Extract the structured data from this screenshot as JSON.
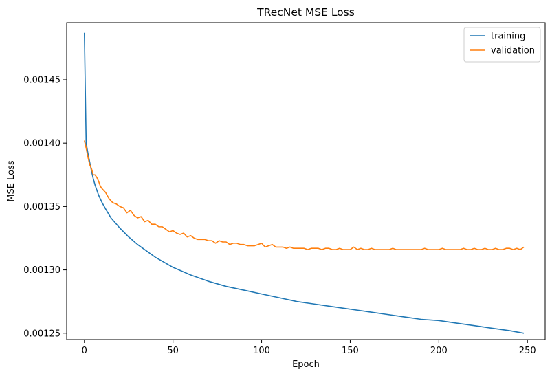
{
  "chart_data": {
    "type": "line",
    "title": "TRecNet MSE Loss",
    "xlabel": "Epoch",
    "ylabel": "MSE Loss",
    "xlim": [
      -10,
      260
    ],
    "ylim": [
      0.001245,
      0.001495
    ],
    "xticks": [
      0,
      50,
      100,
      150,
      200,
      250
    ],
    "yticks": [
      0.00125,
      0.0013,
      0.00135,
      0.0014,
      0.00145
    ],
    "ytick_labels": [
      "0.00125",
      "0.00130",
      "0.00135",
      "0.00140",
      "0.00145"
    ],
    "xtick_labels": [
      "0",
      "50",
      "100",
      "150",
      "200",
      "250"
    ],
    "grid": false,
    "legend_position": "top-right",
    "colors": {
      "training": "#1f77b4",
      "validation": "#ff7f0e"
    },
    "series": [
      {
        "name": "training",
        "x": [
          0,
          1,
          2,
          3,
          4,
          5,
          6,
          8,
          10,
          12,
          15,
          20,
          25,
          30,
          40,
          50,
          60,
          70,
          80,
          90,
          100,
          110,
          120,
          130,
          140,
          150,
          160,
          170,
          180,
          190,
          200,
          210,
          220,
          230,
          240,
          248
        ],
        "values": [
          0.001487,
          0.0014,
          0.001392,
          0.001385,
          0.001378,
          0.001372,
          0.001367,
          0.001359,
          0.001353,
          0.001348,
          0.001341,
          0.001333,
          0.001326,
          0.00132,
          0.00131,
          0.001302,
          0.001296,
          0.001291,
          0.001287,
          0.001284,
          0.001281,
          0.001278,
          0.001275,
          0.001273,
          0.001271,
          0.001269,
          0.001267,
          0.001265,
          0.001263,
          0.001261,
          0.00126,
          0.001258,
          0.001256,
          0.001254,
          0.001252,
          0.00125
        ]
      },
      {
        "name": "validation",
        "x": [
          0,
          1,
          2,
          3,
          4,
          5,
          6,
          7,
          8,
          9,
          10,
          12,
          14,
          16,
          18,
          20,
          22,
          24,
          26,
          28,
          30,
          32,
          34,
          36,
          38,
          40,
          42,
          44,
          46,
          48,
          50,
          52,
          54,
          56,
          58,
          60,
          62,
          64,
          66,
          68,
          70,
          72,
          74,
          76,
          78,
          80,
          82,
          84,
          86,
          88,
          90,
          92,
          94,
          96,
          98,
          100,
          102,
          104,
          106,
          108,
          110,
          112,
          114,
          116,
          118,
          120,
          122,
          124,
          126,
          128,
          130,
          132,
          134,
          136,
          138,
          140,
          142,
          144,
          146,
          148,
          150,
          152,
          154,
          156,
          158,
          160,
          162,
          164,
          166,
          168,
          170,
          172,
          174,
          176,
          178,
          180,
          182,
          184,
          186,
          188,
          190,
          192,
          194,
          196,
          198,
          200,
          202,
          204,
          206,
          208,
          210,
          212,
          214,
          216,
          218,
          220,
          222,
          224,
          226,
          228,
          230,
          232,
          234,
          236,
          238,
          240,
          242,
          244,
          246,
          248
        ],
        "values": [
          0.001402,
          0.001396,
          0.001389,
          0.001383,
          0.00138,
          0.001375,
          0.001375,
          0.001373,
          0.00137,
          0.001366,
          0.001364,
          0.001361,
          0.001356,
          0.001353,
          0.001352,
          0.00135,
          0.001349,
          0.001345,
          0.001347,
          0.001343,
          0.001341,
          0.001342,
          0.001338,
          0.001339,
          0.001336,
          0.001336,
          0.001334,
          0.001334,
          0.001332,
          0.00133,
          0.001331,
          0.001329,
          0.001328,
          0.001329,
          0.001326,
          0.001327,
          0.001325,
          0.001324,
          0.001324,
          0.001324,
          0.001323,
          0.001323,
          0.001321,
          0.001323,
          0.001322,
          0.001322,
          0.00132,
          0.001321,
          0.001321,
          0.00132,
          0.00132,
          0.001319,
          0.001319,
          0.001319,
          0.00132,
          0.001321,
          0.001318,
          0.001319,
          0.00132,
          0.001318,
          0.001318,
          0.001318,
          0.001317,
          0.001318,
          0.001317,
          0.001317,
          0.001317,
          0.001317,
          0.001316,
          0.001317,
          0.001317,
          0.001317,
          0.001316,
          0.001317,
          0.001317,
          0.001316,
          0.001316,
          0.001317,
          0.001316,
          0.001316,
          0.001316,
          0.001318,
          0.001316,
          0.001317,
          0.001316,
          0.001316,
          0.001317,
          0.001316,
          0.001316,
          0.001316,
          0.001316,
          0.001316,
          0.001317,
          0.001316,
          0.001316,
          0.001316,
          0.001316,
          0.001316,
          0.001316,
          0.001316,
          0.001316,
          0.001317,
          0.001316,
          0.001316,
          0.001316,
          0.001316,
          0.001317,
          0.001316,
          0.001316,
          0.001316,
          0.001316,
          0.001316,
          0.001317,
          0.001316,
          0.001316,
          0.001317,
          0.001316,
          0.001316,
          0.001317,
          0.001316,
          0.001316,
          0.001317,
          0.001316,
          0.001316,
          0.001317,
          0.001317,
          0.001316,
          0.001317,
          0.001316,
          0.001318
        ]
      }
    ]
  }
}
